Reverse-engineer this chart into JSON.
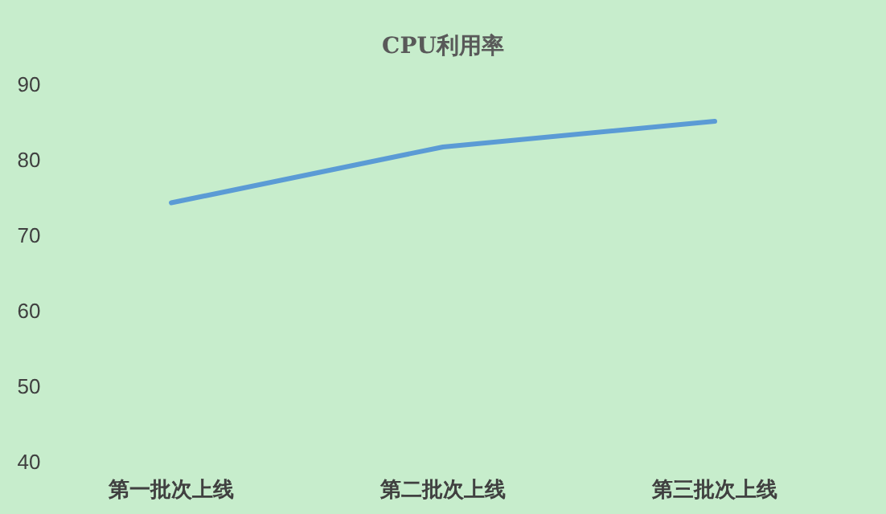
{
  "chart_data": {
    "type": "line",
    "title": "CPU利用率",
    "categories": [
      "第一批次上线",
      "第二批次上线",
      "第三批次上线"
    ],
    "series": [
      {
        "color": "#5b9bd5",
        "values": [
          74.2,
          81.6,
          85
        ]
      }
    ],
    "ylim": [
      40,
      90
    ],
    "yticks": [
      40,
      50,
      60,
      70,
      80,
      90
    ],
    "grid": false,
    "marker": "none",
    "line_style": "solid"
  }
}
